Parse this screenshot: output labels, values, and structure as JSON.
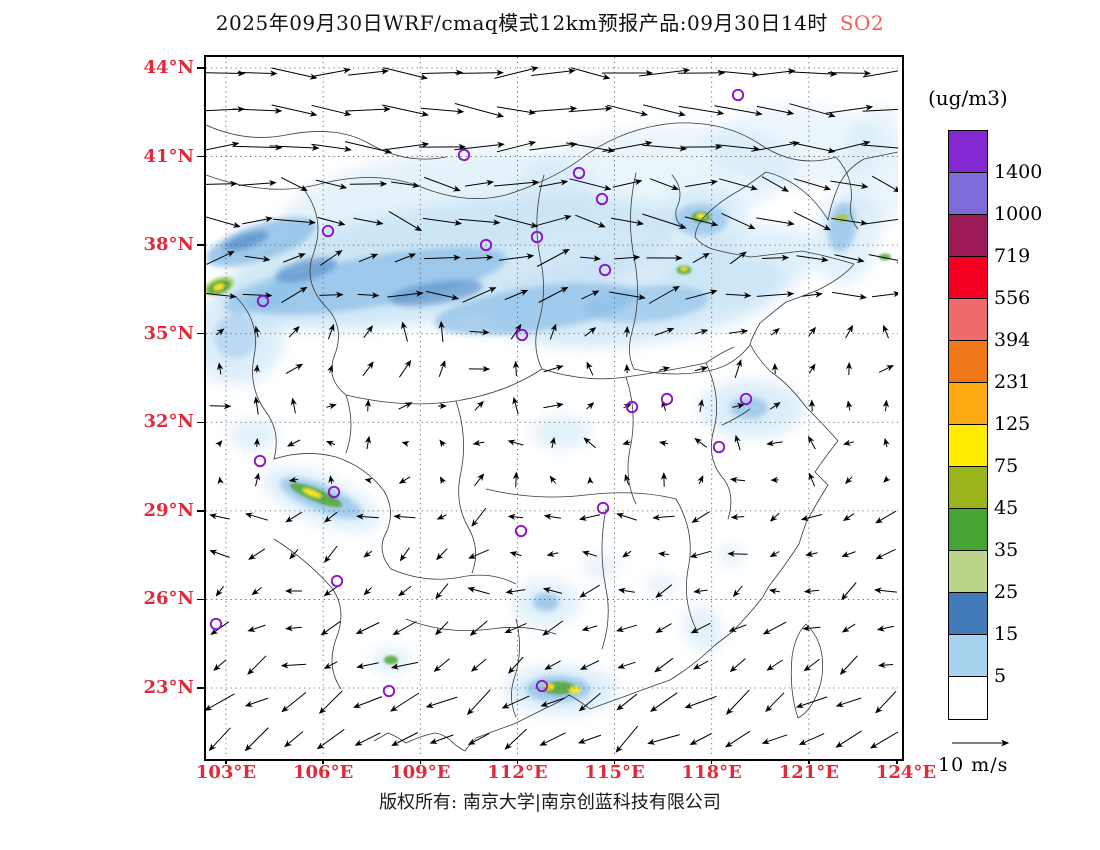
{
  "title": {
    "text": "2025年09月30日WRF/cmaq模式12km预报产品:09月30日14时",
    "species": "SO2"
  },
  "colors": {
    "axis_label": "#e02a3c",
    "species_label": "#fa5a5a",
    "title_text": "#101010",
    "marker": "#8a14c8",
    "arrow": "#000000",
    "border_line": "#3a3a3a",
    "graticule": "#555555"
  },
  "axes": {
    "lat_labels": [
      "44°N",
      "41°N",
      "38°N",
      "35°N",
      "32°N",
      "29°N",
      "26°N",
      "23°N"
    ],
    "lon_labels": [
      "103°E",
      "106°E",
      "109°E",
      "112°E",
      "115°E",
      "118°E",
      "121°E",
      "124°E"
    ]
  },
  "legend": {
    "units": "(ug/m3)",
    "levels": [
      "1400",
      "1000",
      "719",
      "556",
      "394",
      "231",
      "125",
      "75",
      "45",
      "35",
      "25",
      "15",
      "5"
    ],
    "cell_colors_top_to_bottom": [
      "#8428d2",
      "#7e6bd8",
      "#9c1a56",
      "#f50021",
      "#ef6a6a",
      "#f07818",
      "#fcaa10",
      "#ffec00",
      "#9ab41c",
      "#46a432",
      "#bcd588",
      "#4279b8",
      "#a8d3ee",
      "#ffffff"
    ]
  },
  "wind_scale": {
    "label": "10 m/s",
    "speed_ms": 10
  },
  "footer": {
    "text": "版权所有: 南京大学|南京创蓝科技有限公司"
  },
  "chart_data": {
    "type": "heatmap",
    "variable": "SO2",
    "units": "ug/m3",
    "model": "WRF/cmaq 12km",
    "forecast_issue_date": "2025年09月30日",
    "valid_time": "09月30日14时",
    "lon_ticks": [
      103,
      106,
      109,
      112,
      115,
      118,
      121,
      124
    ],
    "lat_ticks": [
      23,
      26,
      29,
      32,
      35,
      38,
      41,
      44
    ],
    "color_levels": [
      5,
      15,
      25,
      35,
      45,
      75,
      125,
      231,
      394,
      556,
      719,
      1000,
      1400
    ],
    "legend_position": "right",
    "wind_reference_speed_ms": 10,
    "blob_palette": {
      "b1": "#c7e3f5",
      "b2": "#8fc0e8",
      "b3": "#5b93cc",
      "g": "#58a83e",
      "yg": "#a9c63e",
      "y": "#ffe81e"
    },
    "blob_format": "x,y,w,h,rotation_deg,palette_key,opacity,blur_px (map-local pixels, 692x698)",
    "so2_blobs": [
      [
        230,
        150,
        320,
        110,
        -8,
        "b1",
        0.45,
        7
      ],
      [
        450,
        120,
        280,
        100,
        -5,
        "b1",
        0.4,
        7
      ],
      [
        590,
        90,
        180,
        80,
        0,
        "b1",
        0.35,
        7
      ],
      [
        672,
        110,
        66,
        120,
        0,
        "b1",
        0.4,
        7
      ],
      [
        240,
        205,
        460,
        115,
        -9,
        "b1",
        0.8,
        7
      ],
      [
        430,
        240,
        300,
        95,
        -7,
        "b1",
        0.7,
        7
      ],
      [
        535,
        210,
        160,
        75,
        -14,
        "b1",
        0.55,
        7
      ],
      [
        30,
        280,
        95,
        95,
        0,
        "b1",
        0.6,
        7
      ],
      [
        495,
        165,
        95,
        65,
        0,
        "b1",
        0.55,
        7
      ],
      [
        640,
        180,
        65,
        95,
        8,
        "b1",
        0.5,
        7
      ],
      [
        545,
        352,
        105,
        58,
        0,
        "b1",
        0.6,
        7
      ],
      [
        355,
        375,
        58,
        34,
        0,
        "b1",
        0.5,
        7
      ],
      [
        48,
        378,
        50,
        32,
        0,
        "b1",
        0.5,
        7
      ],
      [
        115,
        442,
        125,
        48,
        22,
        "b1",
        0.55,
        7
      ],
      [
        340,
        546,
        68,
        48,
        0,
        "b1",
        0.5,
        7
      ],
      [
        395,
        510,
        38,
        26,
        0,
        "b1",
        0.45,
        7
      ],
      [
        455,
        528,
        32,
        22,
        0,
        "b1",
        0.45,
        7
      ],
      [
        355,
        633,
        115,
        50,
        0,
        "b1",
        0.6,
        7
      ],
      [
        185,
        604,
        40,
        28,
        0,
        "b1",
        0.5,
        7
      ],
      [
        497,
        572,
        38,
        48,
        -25,
        "b1",
        0.5,
        7
      ],
      [
        525,
        498,
        28,
        20,
        0,
        "b1",
        0.45,
        7
      ],
      [
        55,
        185,
        115,
        36,
        -18,
        "b2",
        0.85,
        3
      ],
      [
        170,
        224,
        265,
        50,
        -10,
        "b2",
        0.8,
        3
      ],
      [
        330,
        252,
        205,
        44,
        -8,
        "b2",
        0.75,
        3
      ],
      [
        440,
        247,
        125,
        36,
        -5,
        "b2",
        0.65,
        3
      ],
      [
        60,
        237,
        85,
        28,
        -20,
        "b2",
        0.65,
        3
      ],
      [
        495,
        163,
        54,
        32,
        0,
        "b2",
        0.7,
        3
      ],
      [
        636,
        170,
        28,
        50,
        8,
        "b2",
        0.75,
        3
      ],
      [
        543,
        351,
        38,
        22,
        0,
        "b2",
        0.75,
        3
      ],
      [
        340,
        545,
        26,
        18,
        0,
        "b2",
        0.8,
        3
      ],
      [
        352,
        632,
        64,
        26,
        0,
        "b2",
        0.8,
        3
      ],
      [
        115,
        441,
        88,
        26,
        22,
        "b2",
        0.75,
        3
      ],
      [
        30,
        279,
        44,
        44,
        0,
        "b2",
        0.45,
        3
      ],
      [
        100,
        213,
        64,
        20,
        -14,
        "b3",
        0.75,
        3
      ],
      [
        230,
        236,
        95,
        22,
        -9,
        "b3",
        0.7,
        3
      ],
      [
        40,
        184,
        48,
        15,
        -18,
        "b3",
        0.8,
        3
      ],
      [
        13,
        229,
        32,
        17,
        -20,
        "yg",
        0.65,
        1
      ],
      [
        13,
        230,
        25,
        13,
        -20,
        "g",
        0.9,
        1
      ],
      [
        13,
        230,
        11,
        6,
        -20,
        "y",
        0.95,
        1
      ],
      [
        495,
        160,
        19,
        11,
        0,
        "g",
        0.9,
        1
      ],
      [
        495,
        159,
        9,
        5,
        0,
        "y",
        0.95,
        1
      ],
      [
        478,
        213,
        15,
        9,
        0,
        "g",
        0.9,
        1
      ],
      [
        478,
        212,
        7,
        4,
        0,
        "y",
        0.9,
        1
      ],
      [
        110,
        438,
        56,
        13,
        22,
        "g",
        0.9,
        1
      ],
      [
        106,
        436,
        20,
        6,
        22,
        "y",
        0.95,
        1
      ],
      [
        353,
        631,
        34,
        13,
        0,
        "g",
        0.9,
        1
      ],
      [
        343,
        630,
        11,
        6,
        0,
        "y",
        0.95,
        1
      ],
      [
        369,
        633,
        12,
        7,
        0,
        "y",
        0.95,
        1
      ],
      [
        185,
        603,
        14,
        9,
        0,
        "g",
        0.9,
        1
      ],
      [
        679,
        200,
        12,
        7,
        0,
        "g",
        0.85,
        1
      ],
      [
        636,
        161,
        13,
        8,
        0,
        "yg",
        0.9,
        1
      ]
    ],
    "city_marker_format": "x,y (map-local pixels, 692x698)",
    "city_markers": [
      [
        532,
        38
      ],
      [
        258,
        98
      ],
      [
        373,
        116
      ],
      [
        396,
        142
      ],
      [
        122,
        174
      ],
      [
        331,
        180
      ],
      [
        280,
        188
      ],
      [
        399,
        213
      ],
      [
        57,
        244
      ],
      [
        316,
        278
      ],
      [
        461,
        342
      ],
      [
        540,
        342
      ],
      [
        426,
        350
      ],
      [
        513,
        390
      ],
      [
        54,
        404
      ],
      [
        128,
        435
      ],
      [
        397,
        451
      ],
      [
        315,
        474
      ],
      [
        131,
        524
      ],
      [
        10,
        567
      ],
      [
        183,
        634
      ],
      [
        336,
        629
      ]
    ],
    "wind_band_format": "arrow field by map-local y range; dir 0=east, CCW positive; speed in m/s",
    "wind_bands": [
      {
        "y_max": 90,
        "dir": 0,
        "spread": 16,
        "speed": 9.5,
        "speed_var": 1.5
      },
      {
        "y_max": 170,
        "dir": -8,
        "spread": 24,
        "speed": 8,
        "speed_var": 2
      },
      {
        "y_max": 255,
        "dir": 10,
        "spread": 28,
        "speed": 6,
        "speed_var": 2
      },
      {
        "y_max": 350,
        "dir": 55,
        "spread": 60,
        "speed": 3,
        "speed_var": 1.5
      },
      {
        "y_max": 440,
        "dir": 140,
        "spread": 90,
        "speed": 2.2,
        "speed_var": 1.2
      },
      {
        "y_max": 545,
        "dir": 195,
        "spread": 40,
        "speed": 3.5,
        "speed_var": 1.5
      },
      {
        "y_max": 620,
        "dir": 205,
        "spread": 25,
        "speed": 4.5,
        "speed_var": 1.5
      },
      {
        "y_max": 999,
        "dir": 213,
        "spread": 18,
        "speed": 6.5,
        "speed_var": 1.5
      }
    ]
  }
}
